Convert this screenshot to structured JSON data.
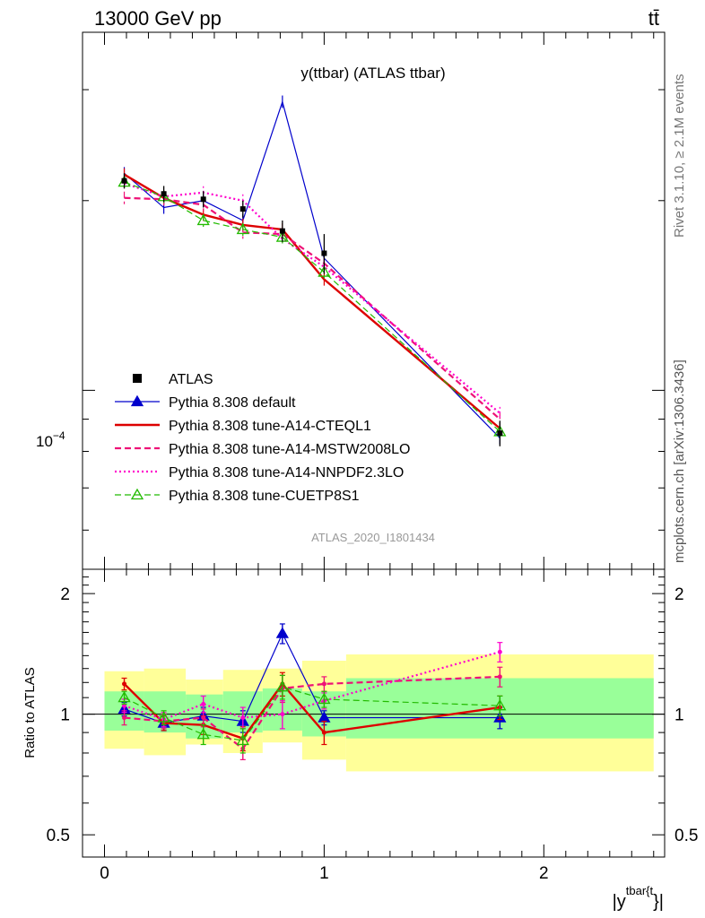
{
  "header": {
    "left": "13000 GeV pp",
    "right": "tt̄"
  },
  "side_labels": {
    "rivet": "Rivet 3.1.10, ≥ 2.1M events",
    "mcplots": "mcplots.cern.ch [arXiv:1306.3436]"
  },
  "chart_data": {
    "type": "line",
    "title": "y(ttbar) (ATLAS ttbar)",
    "analysis_label": "ATLAS_2020_I1801434",
    "xlabel": "|y^{tbar{t}}|",
    "xlabel_main": "|y",
    "xlabel_sup": "tbar{t",
    "xlabel_close": "}|",
    "x_ticks": [
      "0",
      "1",
      "2"
    ],
    "xlim": [
      -0.1,
      2.55
    ],
    "main": {
      "scale": "log",
      "ylim": [
        5.2e-05,
        0.00037
      ],
      "tick_label_base": "10",
      "tick_label_exp": "−4",
      "tick_label_value": 0.0001
    },
    "ratio": {
      "ylabel": "Ratio to ATLAS",
      "scale": "log",
      "ylim": [
        0.44,
        2.3
      ],
      "tick_labels": [
        "0.5",
        "1",
        "2"
      ],
      "tick_values": [
        0.5,
        1,
        2
      ],
      "band_edges": [
        0,
        0.18,
        0.37,
        0.54,
        0.72,
        0.9,
        1.1,
        2.5
      ],
      "band_inner": [
        [
          0.91,
          1.14
        ],
        [
          0.9,
          1.14
        ],
        [
          0.87,
          1.12
        ],
        [
          0.9,
          1.14
        ],
        [
          0.91,
          1.16
        ],
        [
          0.88,
          1.14
        ],
        [
          0.87,
          1.23
        ]
      ],
      "band_outer": [
        [
          0.82,
          1.28
        ],
        [
          0.79,
          1.3
        ],
        [
          0.84,
          1.22
        ],
        [
          0.8,
          1.29
        ],
        [
          0.85,
          1.3
        ],
        [
          0.77,
          1.36
        ],
        [
          0.72,
          1.41
        ]
      ]
    },
    "x": [
      0.09,
      0.27,
      0.45,
      0.63,
      0.81,
      1.0,
      1.8
    ],
    "data": {
      "name": "ATLAS",
      "values": [
        0.000215,
        0.000205,
        0.000201,
        0.000194,
        0.000179,
        0.000165,
        8.55e-05
      ],
      "errors": [
        6e-06,
        6e-06,
        6e-06,
        6e-06,
        7e-06,
        1.2e-05,
        4e-06
      ]
    },
    "series": [
      {
        "name": "Pythia 8.308 default",
        "color": "#0000cc",
        "style": "solid-triangle",
        "values": [
          0.000221,
          0.000195,
          0.0002,
          0.000186,
          0.000287,
          0.000162,
          8.4e-05
        ],
        "ratio": [
          1.03,
          0.95,
          0.99,
          0.96,
          1.59,
          0.98,
          0.98
        ],
        "ratio_err": [
          0.04,
          0.04,
          0.05,
          0.06,
          0.09,
          0.04,
          0.06
        ]
      },
      {
        "name": "Pythia 8.308 tune-A14-CTEQL1",
        "color": "#dd0000",
        "style": "solid-thick",
        "values": [
          0.00022,
          0.000202,
          0.00019,
          0.000183,
          0.00018,
          0.00015,
          8.7e-05
        ],
        "ratio": [
          1.19,
          0.95,
          0.94,
          0.87,
          1.19,
          0.9,
          1.04
        ],
        "ratio_err": [
          0.04,
          0.04,
          0.05,
          0.06,
          0.08,
          0.06,
          0.07
        ]
      },
      {
        "name": "Pythia 8.308 tune-A14-MSTW2008LO",
        "color": "#ee1177",
        "style": "dashed",
        "values": [
          0.000202,
          0.000201,
          0.000197,
          0.000178,
          0.000177,
          0.000159,
          9e-05
        ],
        "ratio": [
          0.98,
          0.96,
          0.98,
          0.82,
          1.16,
          1.19,
          1.24
        ],
        "ratio_err": [
          0.04,
          0.04,
          0.05,
          0.05,
          0.09,
          0.05,
          0.07
        ]
      },
      {
        "name": "Pythia 8.308 tune-A14-NNPDF2.3LO",
        "color": "#ff00cc",
        "style": "dotted",
        "values": [
          0.000213,
          0.000203,
          0.000206,
          0.0002,
          0.000174,
          0.000157,
          9.2e-05
        ],
        "ratio": [
          1.05,
          0.97,
          1.06,
          0.98,
          1.0,
          1.08,
          1.43
        ],
        "ratio_err": [
          0.04,
          0.04,
          0.05,
          0.06,
          0.08,
          0.05,
          0.08
        ]
      },
      {
        "name": "Pythia 8.308 tune-CUETP8S1",
        "color": "#22bb00",
        "style": "dashed-open-triangle",
        "values": [
          0.000214,
          0.000203,
          0.000186,
          0.00018,
          0.000175,
          0.000154,
          8.6e-05
        ],
        "ratio": [
          1.1,
          0.98,
          0.89,
          0.86,
          1.17,
          1.09,
          1.05
        ],
        "ratio_err": [
          0.04,
          0.04,
          0.05,
          0.06,
          0.08,
          0.05,
          0.06
        ]
      }
    ]
  }
}
